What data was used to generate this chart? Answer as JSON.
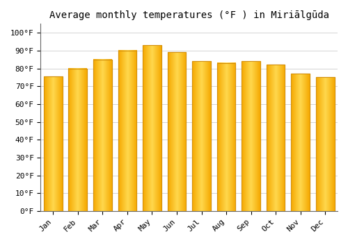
{
  "title": "Average monthly temperatures (°F ) in Miriālgūda",
  "months": [
    "Jan",
    "Feb",
    "Mar",
    "Apr",
    "May",
    "Jun",
    "Jul",
    "Aug",
    "Sep",
    "Oct",
    "Nov",
    "Dec"
  ],
  "values": [
    75.5,
    80.0,
    85.0,
    90.0,
    93.0,
    89.0,
    84.0,
    83.0,
    84.0,
    82.0,
    77.0,
    75.0
  ],
  "bar_color_left": "#F5A800",
  "bar_color_center": "#FFD84D",
  "bar_color_right": "#F5A800",
  "bar_edge_color": "#D4900A",
  "background_color": "#FFFFFF",
  "grid_color": "#CCCCCC",
  "ytick_labels": [
    "0°F",
    "10°F",
    "20°F",
    "30°F",
    "40°F",
    "50°F",
    "60°F",
    "70°F",
    "80°F",
    "90°F",
    "100°F"
  ],
  "ytick_values": [
    0,
    10,
    20,
    30,
    40,
    50,
    60,
    70,
    80,
    90,
    100
  ],
  "ylim": [
    0,
    105
  ],
  "title_fontsize": 10,
  "tick_fontsize": 8,
  "font_family": "monospace",
  "bar_width": 0.75
}
